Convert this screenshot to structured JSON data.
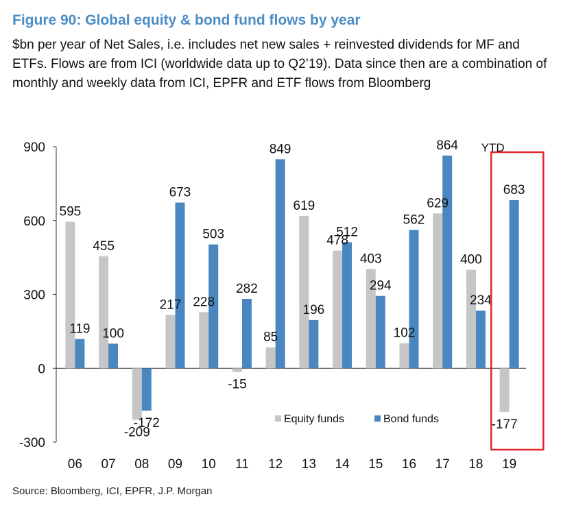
{
  "header": {
    "title": "Figure 90: Global equity & bond fund flows by year",
    "subtitle": "$bn per year of Net Sales, i.e. includes net new sales + reinvested dividends for MF and ETFs. Flows are from ICI (worldwide data up to Q2’19). Data since then are a combination of monthly and weekly data from ICI, EPFR and ETF flows from Bloomberg"
  },
  "footer": {
    "source": "Source: Bloomberg, ICI, EPFR, J.P. Morgan"
  },
  "chart_data": {
    "type": "bar",
    "categories": [
      "06",
      "07",
      "08",
      "09",
      "10",
      "11",
      "12",
      "13",
      "14",
      "15",
      "16",
      "17",
      "18",
      "19"
    ],
    "series": [
      {
        "name": "Equity funds",
        "color": "#c6c6c6",
        "values": [
          595,
          455,
          -209,
          217,
          228,
          -15,
          85,
          619,
          478,
          403,
          102,
          629,
          400,
          -177
        ]
      },
      {
        "name": "Bond funds",
        "color": "#4a86c0",
        "values": [
          119,
          100,
          -172,
          673,
          503,
          282,
          849,
          196,
          512,
          294,
          562,
          864,
          234,
          683
        ]
      }
    ],
    "ylim": [
      -300,
      900
    ],
    "yticks": [
      -300,
      0,
      300,
      600,
      900
    ],
    "xlabel": "",
    "ylabel": "",
    "legend_position": "bottom-right",
    "annotation": {
      "text": "YTD",
      "category": "19"
    },
    "highlight": {
      "category": "19",
      "color": "#e0262b"
    }
  }
}
